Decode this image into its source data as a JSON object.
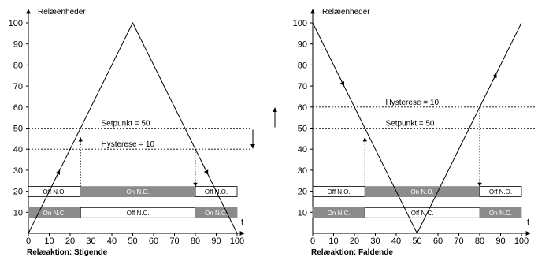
{
  "chart_data": [
    {
      "type": "line",
      "ylabel": "Relæenheder",
      "xlabel": "t",
      "xlim": [
        0,
        100
      ],
      "ylim": [
        0,
        100
      ],
      "x_ticks": [
        "0",
        "10",
        "20",
        "30",
        "40",
        "50",
        "60",
        "70",
        "80",
        "90",
        "100"
      ],
      "y_ticks": [
        "10",
        "20",
        "30",
        "40",
        "50",
        "60",
        "70",
        "80",
        "90",
        "100"
      ],
      "series": [
        {
          "x": [
            0,
            50,
            100
          ],
          "y": [
            0,
            100,
            0
          ]
        }
      ],
      "thresholds": [
        {
          "label": "Setpunkt = 50",
          "value": 50
        },
        {
          "label": "Hysterese = 10",
          "value": 40
        }
      ],
      "switch_points": [
        25,
        80
      ],
      "relay_bars": {
        "no": [
          {
            "label": "Off N.O.",
            "from": 0,
            "to": 25,
            "active": false
          },
          {
            "label": "On N.O.",
            "from": 25,
            "to": 80,
            "active": true
          },
          {
            "label": "Off N.O.",
            "from": 80,
            "to": 100,
            "active": false
          }
        ],
        "nc": [
          {
            "label": "On N.C.",
            "from": 0,
            "to": 25,
            "active": true
          },
          {
            "label": "Off N.C.",
            "from": 25,
            "to": 80,
            "active": false
          },
          {
            "label": "On N.C.",
            "from": 80,
            "to": 100,
            "active": true
          }
        ]
      },
      "caption": "Relæaktion: Stigende"
    },
    {
      "type": "line",
      "ylabel": "Relæenheder",
      "xlabel": "t",
      "xlim": [
        0,
        100
      ],
      "ylim": [
        0,
        100
      ],
      "x_ticks": [
        "0",
        "10",
        "20",
        "30",
        "40",
        "50",
        "60",
        "70",
        "80",
        "90",
        "100"
      ],
      "y_ticks": [
        "10",
        "20",
        "30",
        "40",
        "50",
        "60",
        "70",
        "80",
        "90",
        "100"
      ],
      "series": [
        {
          "x": [
            0,
            50,
            100
          ],
          "y": [
            100,
            0,
            100
          ]
        }
      ],
      "thresholds": [
        {
          "label": "Hysterese = 10",
          "value": 60
        },
        {
          "label": "Setpunkt = 50",
          "value": 50
        }
      ],
      "switch_points": [
        25,
        80
      ],
      "relay_bars": {
        "no": [
          {
            "label": "Off N.O.",
            "from": 0,
            "to": 25,
            "active": false
          },
          {
            "label": "On N.O.",
            "from": 25,
            "to": 80,
            "active": true
          },
          {
            "label": "Off N.O.",
            "from": 80,
            "to": 100,
            "active": false
          }
        ],
        "nc": [
          {
            "label": "On N.C.",
            "from": 0,
            "to": 25,
            "active": true
          },
          {
            "label": "Off N.C.",
            "from": 25,
            "to": 80,
            "active": false
          },
          {
            "label": "On N.C.",
            "from": 80,
            "to": 100,
            "active": true
          }
        ]
      },
      "caption": "Relæaktion: Faldende"
    }
  ],
  "colors": {
    "active_bar": "#8c8c8c",
    "active_text": "#ffffff",
    "inactive_bar": "#ffffff",
    "inactive_text": "#000000",
    "line": "#000000"
  }
}
